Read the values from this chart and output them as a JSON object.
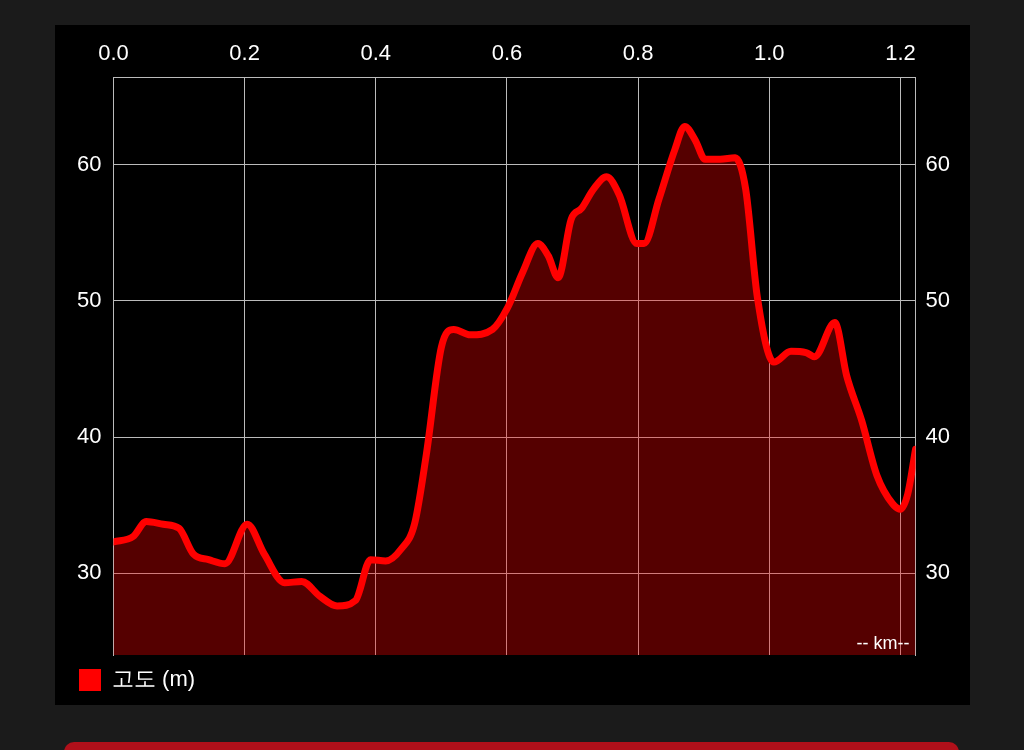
{
  "chart_data": {
    "type": "area",
    "legend": "bottom left",
    "grid": true,
    "marker": "none",
    "annotations": [
      "-- km--"
    ],
    "xlim": [
      0,
      1.223
    ],
    "xticks": [
      {
        "value": 0,
        "label": "0.0"
      },
      {
        "value": 0.2,
        "label": "0.2"
      },
      {
        "value": 0.4,
        "label": "0.4"
      },
      {
        "value": 0.6,
        "label": "0.6"
      },
      {
        "value": 0.8,
        "label": "0.8"
      },
      {
        "value": 1,
        "label": "1.0"
      },
      {
        "value": 1.2,
        "label": "1.2"
      }
    ],
    "ylim": [
      24,
      66.4
    ],
    "yticks": [
      30,
      40,
      50,
      60
    ],
    "y2lim": [
      24,
      66.4
    ],
    "y2ticks": [
      30,
      40,
      50,
      60
    ],
    "x": [
      0,
      0.03,
      0.05,
      0.076,
      0.1,
      0.122,
      0.145,
      0.17,
      0.204,
      0.23,
      0.261,
      0.287,
      0.315,
      0.341,
      0.369,
      0.392,
      0.415,
      0.439,
      0.459,
      0.477,
      0.5,
      0.519,
      0.544,
      0.578,
      0.601,
      0.624,
      0.647,
      0.663,
      0.678,
      0.698,
      0.714,
      0.732,
      0.752,
      0.771,
      0.798,
      0.809,
      0.832,
      0.856,
      0.871,
      0.887,
      0.902,
      0.925,
      0.948,
      0.964,
      0.982,
      1.007,
      1.033,
      1.056,
      1.069,
      1.1,
      1.118,
      1.141,
      1.164,
      1.188,
      1.2,
      1.211,
      1.223
    ],
    "series": [
      {
        "name": "고도 (m)",
        "color": "#ff0000",
        "values": [
          32.3,
          32.7,
          33.8,
          33.6,
          33.3,
          31.4,
          31.0,
          30.7,
          33.6,
          31.4,
          29.3,
          29.4,
          28.3,
          27.6,
          28.0,
          31.0,
          30.9,
          31.8,
          33.6,
          38.7,
          46.6,
          47.9,
          47.5,
          47.9,
          49.5,
          52.1,
          54.2,
          53.3,
          51.7,
          56.0,
          56.8,
          58.2,
          59.1,
          57.8,
          54.2,
          54.2,
          57.5,
          61.1,
          62.8,
          61.8,
          60.4,
          60.4,
          60.5,
          58.2,
          50.2,
          45.5,
          46.3,
          46.2,
          45.9,
          48.4,
          44.5,
          41.2,
          37.2,
          35.1,
          34.7,
          35.8,
          39.1
        ]
      }
    ]
  }
}
